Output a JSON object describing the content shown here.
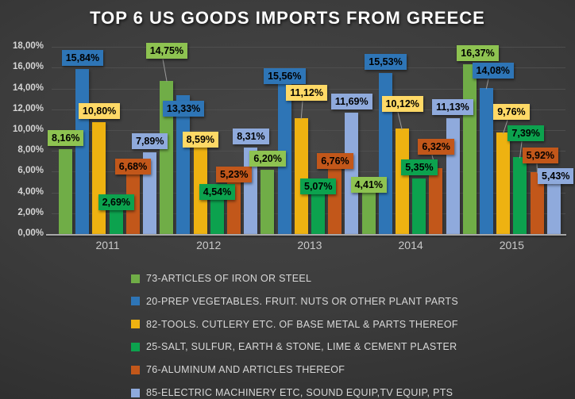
{
  "title": "TOP 6 US GOODS IMPORTS FROM GREECE",
  "theme": {
    "background": "#3c3c3c",
    "text_light": "#d8d8d8",
    "grid": "#4e4e4e",
    "axis_line": "#a8a8a8",
    "label_text": "#000000"
  },
  "y_axis": {
    "ticks": [
      "0,00%",
      "2,00%",
      "4,00%",
      "6,00%",
      "8,00%",
      "10,00%",
      "12,00%",
      "14,00%",
      "16,00%",
      "18,00%"
    ],
    "min": 0,
    "max": 18,
    "step": 2
  },
  "chart_data": {
    "type": "bar",
    "title": "TOP 6 US GOODS IMPORTS FROM GREECE",
    "categories": [
      "2011",
      "2012",
      "2013",
      "2014",
      "2015"
    ],
    "series": [
      {
        "name": "73-ARTICLES OF IRON OR STEEL",
        "color": "#70AD47",
        "label_color": "#8EC351",
        "values": [
          8.16,
          14.75,
          6.2,
          4.41,
          16.37
        ]
      },
      {
        "name": "20-PREP VEGETABLES. FRUIT. NUTS OR OTHER PLANT PARTS",
        "color": "#2E75B6",
        "label_color": "#2E75B6",
        "values": [
          15.84,
          13.33,
          15.56,
          15.53,
          14.08
        ]
      },
      {
        "name": "82-TOOLS. CUTLERY ETC. OF BASE METAL & PARTS THEREOF",
        "color": "#EEB211",
        "label_color": "#FFD966",
        "values": [
          10.8,
          8.59,
          11.12,
          10.12,
          9.76
        ]
      },
      {
        "name": "25-SALT, SULFUR, EARTH & STONE, LIME & CEMENT PLASTER",
        "color": "#0CA24E",
        "label_color": "#0CA24E",
        "values": [
          2.69,
          4.54,
          5.07,
          5.35,
          7.39
        ]
      },
      {
        "name": "76-ALUMINUM AND ARTICLES THEREOF",
        "color": "#C2571A",
        "label_color": "#C2571A",
        "values": [
          6.68,
          5.23,
          6.76,
          6.32,
          5.92
        ]
      },
      {
        "name": "85-ELECTRIC MACHINERY ETC, SOUND EQUIP,TV EQUIP, PTS",
        "color": "#8FAADC",
        "label_color": "#8FAADC",
        "values": [
          7.89,
          8.31,
          11.69,
          11.13,
          5.43
        ]
      }
    ],
    "value_format": "0,00%",
    "decimal_separator": ",",
    "value_suffix": "%",
    "ylim": [
      0,
      18
    ],
    "grid": true,
    "legend_position": "bottom-left",
    "data_labels": "on, colored boxes matching series, some with leader lines"
  }
}
